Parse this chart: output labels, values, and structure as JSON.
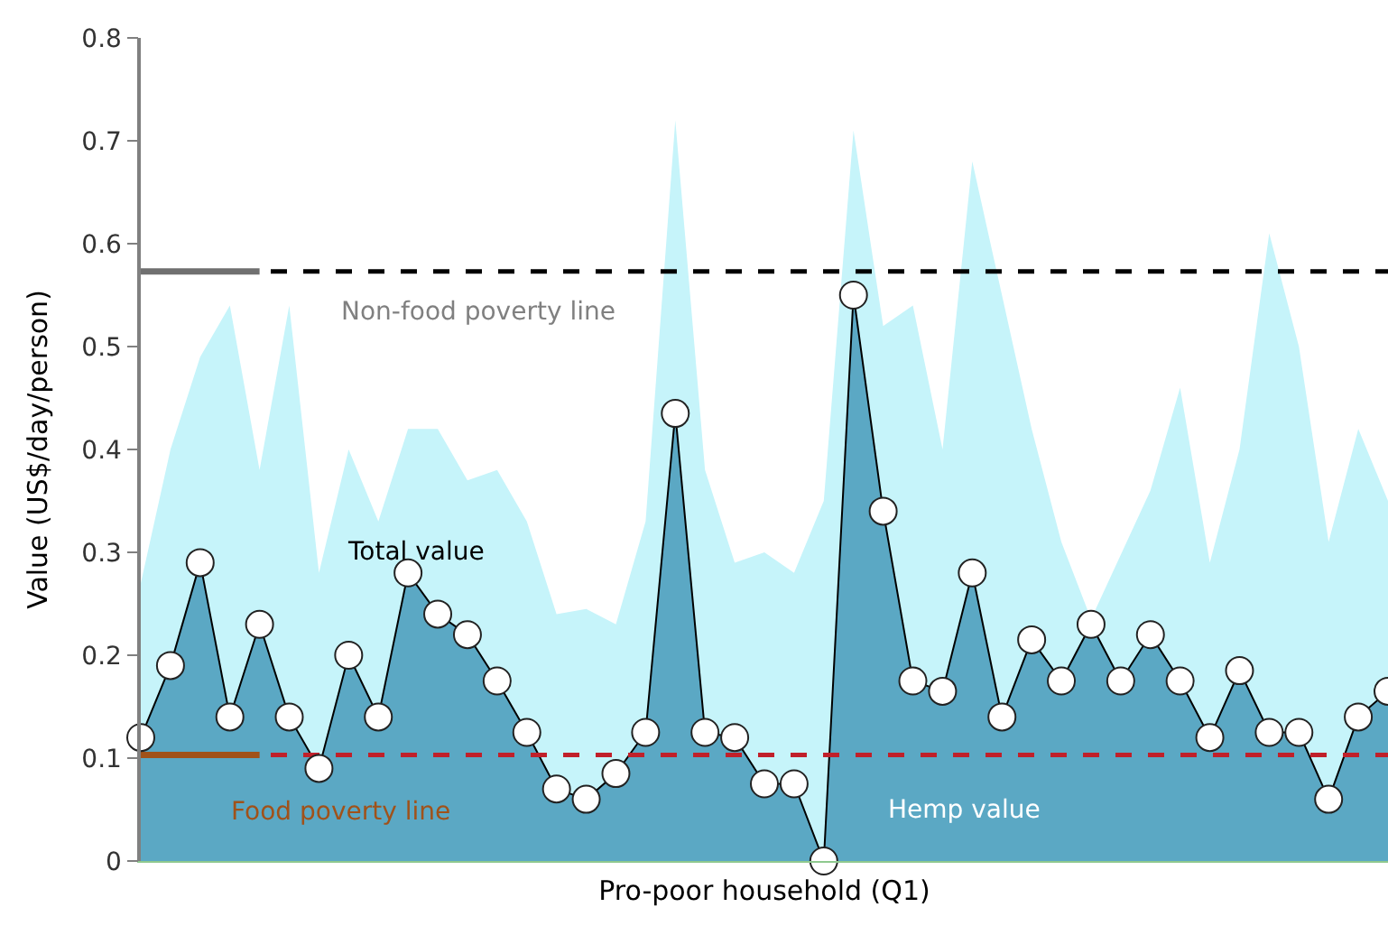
{
  "chart_data": {
    "type": "area",
    "xlabel": "Pro-poor household (Q1)",
    "ylabel": "Value (US$/day/person)",
    "categories": [
      null,
      null,
      null,
      null,
      null,
      null,
      null,
      null,
      null,
      null,
      null,
      null,
      null,
      null,
      null,
      null,
      null,
      null,
      null,
      null,
      null,
      null,
      null,
      null,
      null,
      null,
      null,
      null,
      null,
      null,
      null,
      null,
      null,
      null,
      null,
      null,
      null,
      null,
      null,
      null,
      null,
      null,
      null
    ],
    "ylim": [
      0,
      0.8
    ],
    "yticks": [
      0,
      0.1,
      0.2,
      0.3,
      0.4,
      0.5,
      0.6,
      0.7,
      0.8
    ],
    "legend": false,
    "series": [
      {
        "name": "Total value",
        "color": "#c6f4fa",
        "values": [
          0.27,
          0.4,
          0.49,
          0.54,
          0.38,
          0.54,
          0.28,
          0.4,
          0.33,
          0.42,
          0.42,
          0.37,
          0.38,
          0.33,
          0.24,
          0.245,
          0.23,
          0.33,
          0.72,
          0.38,
          0.29,
          0.3,
          0.28,
          0.35,
          0.71,
          0.52,
          0.54,
          0.4,
          0.68,
          0.55,
          0.42,
          0.31,
          0.235,
          null,
          0.36,
          0.46,
          0.29,
          0.4,
          0.61,
          0.5,
          0.31,
          0.42,
          0.35
        ]
      },
      {
        "name": "Hemp value",
        "marker": "circle",
        "color": "#5ba8c4",
        "values": [
          0.12,
          0.19,
          0.29,
          0.14,
          0.23,
          0.14,
          0.09,
          0.2,
          0.14,
          0.28,
          0.24,
          0.22,
          0.175,
          0.125,
          0.07,
          0.06,
          0.085,
          0.125,
          0.435,
          0.125,
          0.12,
          0.075,
          0.075,
          0.0,
          0.55,
          0.34,
          0.175,
          0.165,
          0.28,
          0.14,
          0.215,
          0.175,
          0.23,
          0.175,
          0.22,
          0.175,
          0.12,
          0.185,
          0.125,
          0.125,
          0.06,
          0.14,
          0.165
        ]
      },
      {
        "type": "line",
        "color": "#707070",
        "values": [
          0.573,
          0.573,
          0.573,
          0.573,
          0.573,
          null,
          null,
          null,
          null,
          null,
          null,
          null,
          null,
          null,
          null,
          null,
          null,
          null,
          null,
          null,
          null,
          null,
          null,
          null,
          null,
          null,
          null,
          null,
          null,
          null,
          null,
          null,
          null,
          null,
          null,
          null,
          null,
          null,
          null,
          null,
          null,
          null,
          null
        ]
      },
      {
        "type": "line",
        "color": "#a0521a",
        "values": [
          0.103,
          0.103,
          0.103,
          0.103,
          0.103,
          null,
          null,
          null,
          null,
          null,
          null,
          null,
          null,
          null,
          null,
          null,
          null,
          null,
          null,
          null,
          null,
          null,
          null,
          null,
          null,
          null,
          null,
          null,
          null,
          null,
          null,
          null,
          null,
          null,
          null,
          null,
          null,
          null,
          null,
          null,
          null,
          null,
          null
        ]
      }
    ],
    "ref_lines": [
      {
        "axis": "y",
        "value": 0.573,
        "label": "Non-food poverty line",
        "color": "#000000",
        "line_style": "dashed"
      },
      {
        "axis": "y",
        "value": 0.103,
        "label": "Food poverty line",
        "color": "#c0202a",
        "line_style": "dashed"
      }
    ]
  }
}
